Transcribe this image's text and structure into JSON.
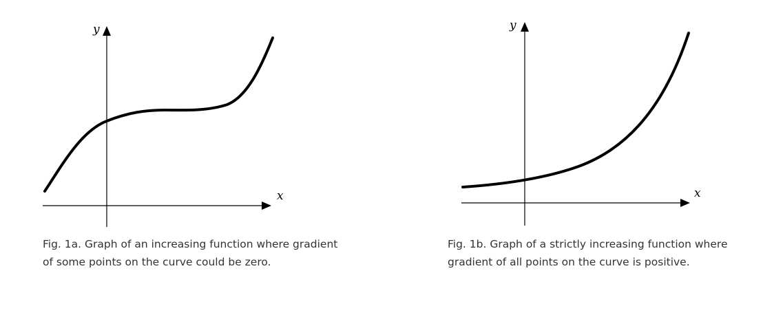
{
  "figures": [
    {
      "id": "fig-1a",
      "caption": "Fig. 1a. Graph of an increasing function where gradient of some points on the curve could be zero.",
      "x_axis_label": "x",
      "y_axis_label": "y",
      "curve_kind": "increasing function with a flat region of zero gradient"
    },
    {
      "id": "fig-1b",
      "caption": "Fig. 1b. Graph of a strictly increasing function where gradient of all points on the curve is positive.",
      "x_axis_label": "x",
      "y_axis_label": "y",
      "curve_kind": "strictly increasing function with positive gradient everywhere"
    }
  ],
  "colors": {
    "curve": "#000000",
    "axes": "#000000",
    "caption_text": "#333333"
  }
}
